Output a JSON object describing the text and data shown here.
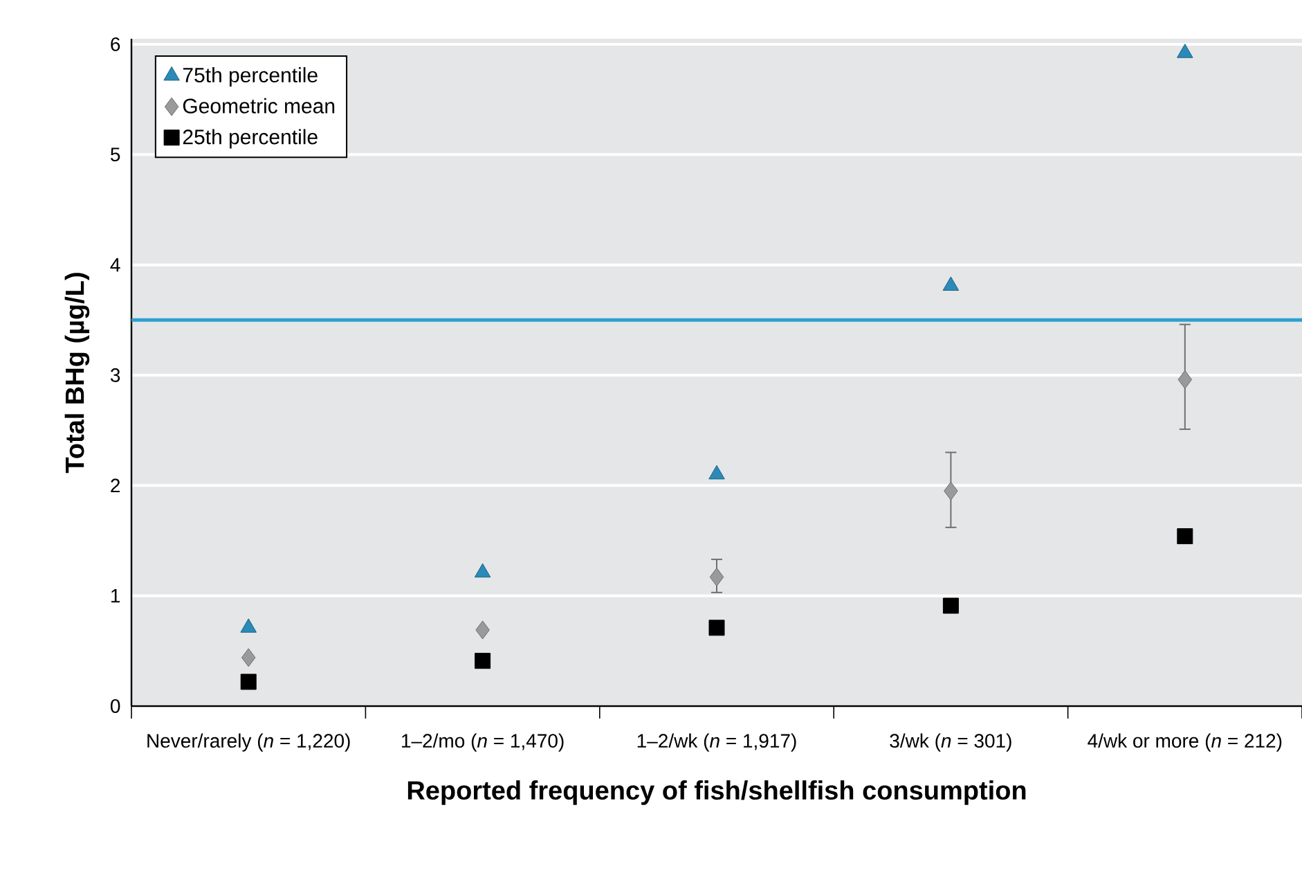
{
  "chart_data": {
    "type": "scatter",
    "xlabel": "Reported frequency of fish/shellfish consumption",
    "ylabel": "Total BHg (µg/L)",
    "categories": [
      "Never/rarely (*n* = 1,220)",
      "1–2/mo (*n* = 1,470)",
      "1–2/wk (*n* = 1,917)",
      "3/wk (*n* = 301)",
      "4/wk or more (*n* = 212)"
    ],
    "series": [
      {
        "name": "75th percentile",
        "color": "#2a8ab8",
        "marker": "triangle",
        "values": [
          0.71,
          1.21,
          2.1,
          3.81,
          5.92
        ]
      },
      {
        "name": "Geometric mean",
        "color": "#9a9a9a",
        "marker": "diamond",
        "values": [
          0.44,
          0.69,
          1.17,
          1.95,
          2.96
        ],
        "errors": [
          null,
          null,
          [
            1.03,
            1.33
          ],
          [
            1.62,
            2.3
          ],
          [
            2.51,
            3.46
          ]
        ]
      },
      {
        "name": "25th percentile",
        "color": "#000000",
        "marker": "square",
        "values": [
          0.22,
          0.41,
          0.71,
          0.91,
          1.54
        ]
      }
    ],
    "ylim": [
      0,
      6.05
    ],
    "yticks": [
      0,
      1,
      2,
      3,
      4,
      5,
      6
    ],
    "ref_lines": [
      {
        "axis": "y",
        "value": 3.5,
        "color": "#2e9fd0"
      }
    ],
    "grid": "y",
    "legend": "top left"
  }
}
